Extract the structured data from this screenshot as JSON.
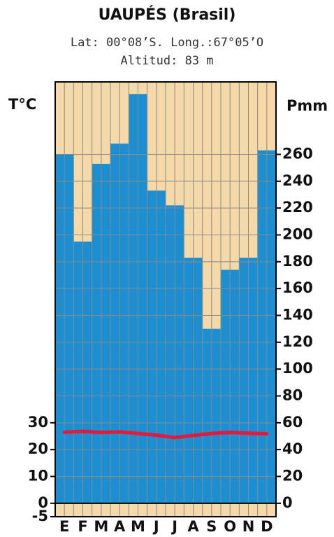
{
  "chart_data": {
    "type": "bar",
    "title": "UAUPÉS (Brasil)",
    "subtitle": [
      "Lat: 00°08’S.  Long.:67°05’O",
      "Altitud: 83 m"
    ],
    "ylabel": "T°C",
    "y2label": "Pmm",
    "categories": [
      "E",
      "F",
      "M",
      "A",
      "M",
      "J",
      "J",
      "A",
      "S",
      "O",
      "N",
      "D"
    ],
    "series": [
      {
        "type": "bar",
        "axis": "y2",
        "color": "#1b8fd1",
        "values": [
          260,
          195,
          253,
          268,
          305,
          233,
          222,
          183,
          130,
          174,
          183,
          263
        ]
      },
      {
        "type": "line",
        "axis": "y",
        "color": "#e8173c",
        "values": [
          26.5,
          26.8,
          26.4,
          26.6,
          26.0,
          25.4,
          24.5,
          25.3,
          26.0,
          26.4,
          26.1,
          25.9
        ]
      }
    ],
    "ylim": [
      -5,
      157
    ],
    "yticks": [
      -5,
      0,
      10,
      20,
      30
    ],
    "y2lim": [
      -10,
      314
    ],
    "y2ticks": [
      0,
      20,
      40,
      60,
      80,
      100,
      120,
      140,
      160,
      180,
      200,
      220,
      240,
      260
    ],
    "background": "#f5d9a8",
    "grid": true
  }
}
